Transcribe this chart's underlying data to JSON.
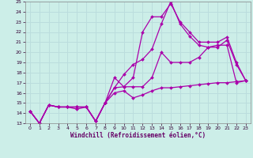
{
  "xlabel": "Windchill (Refroidissement éolien,°C)",
  "ylabel": "",
  "xlim": [
    -0.5,
    23.5
  ],
  "ylim": [
    13,
    25
  ],
  "yticks": [
    13,
    14,
    15,
    16,
    17,
    18,
    19,
    20,
    21,
    22,
    23,
    24,
    25
  ],
  "xticks": [
    0,
    1,
    2,
    3,
    4,
    5,
    6,
    7,
    8,
    9,
    10,
    11,
    12,
    13,
    14,
    15,
    16,
    17,
    18,
    19,
    20,
    21,
    22,
    23
  ],
  "background_color": "#cceee8",
  "line_color": "#aa00aa",
  "grid_color": "#bbdddd",
  "series": [
    {
      "x": [
        0,
        1,
        2,
        3,
        4,
        5,
        6,
        7,
        8,
        9,
        10,
        11,
        12,
        13,
        14,
        15,
        16,
        17,
        18,
        19,
        20,
        21,
        22,
        23
      ],
      "y": [
        14.2,
        13.0,
        14.8,
        14.6,
        14.6,
        14.6,
        14.6,
        13.2,
        15.0,
        16.5,
        16.6,
        16.6,
        16.6,
        17.5,
        20.0,
        19.0,
        19.0,
        19.0,
        19.5,
        20.5,
        20.7,
        20.7,
        17.0,
        17.2
      ]
    },
    {
      "x": [
        0,
        1,
        2,
        3,
        4,
        5,
        6,
        7,
        8,
        9,
        10,
        11,
        12,
        13,
        14,
        15,
        16,
        17,
        18,
        19,
        20,
        21,
        22,
        23
      ],
      "y": [
        14.2,
        13.0,
        14.8,
        14.6,
        14.6,
        14.6,
        14.6,
        13.2,
        15.0,
        16.5,
        17.8,
        18.8,
        19.3,
        20.3,
        22.8,
        25.0,
        22.8,
        21.6,
        20.7,
        20.5,
        20.5,
        21.2,
        18.8,
        17.2
      ]
    },
    {
      "x": [
        0,
        1,
        2,
        3,
        4,
        5,
        6,
        7,
        8,
        9,
        10,
        11,
        12,
        13,
        14,
        15,
        16,
        17,
        18,
        19,
        20,
        21,
        22,
        23
      ],
      "y": [
        14.2,
        13.0,
        14.8,
        14.6,
        14.6,
        14.4,
        14.6,
        13.2,
        15.0,
        17.5,
        16.6,
        17.5,
        22.0,
        23.5,
        23.5,
        24.8,
        23.0,
        22.0,
        21.0,
        21.0,
        21.0,
        21.5,
        19.0,
        17.2
      ]
    },
    {
      "x": [
        0,
        1,
        2,
        3,
        4,
        5,
        6,
        7,
        8,
        9,
        10,
        11,
        12,
        13,
        14,
        15,
        16,
        17,
        18,
        19,
        20,
        21,
        22,
        23
      ],
      "y": [
        14.2,
        13.0,
        14.8,
        14.6,
        14.6,
        14.6,
        14.6,
        13.2,
        15.0,
        16.0,
        16.2,
        15.5,
        15.8,
        16.2,
        16.5,
        16.5,
        16.6,
        16.7,
        16.8,
        16.9,
        17.0,
        17.0,
        17.1,
        17.2
      ]
    }
  ]
}
